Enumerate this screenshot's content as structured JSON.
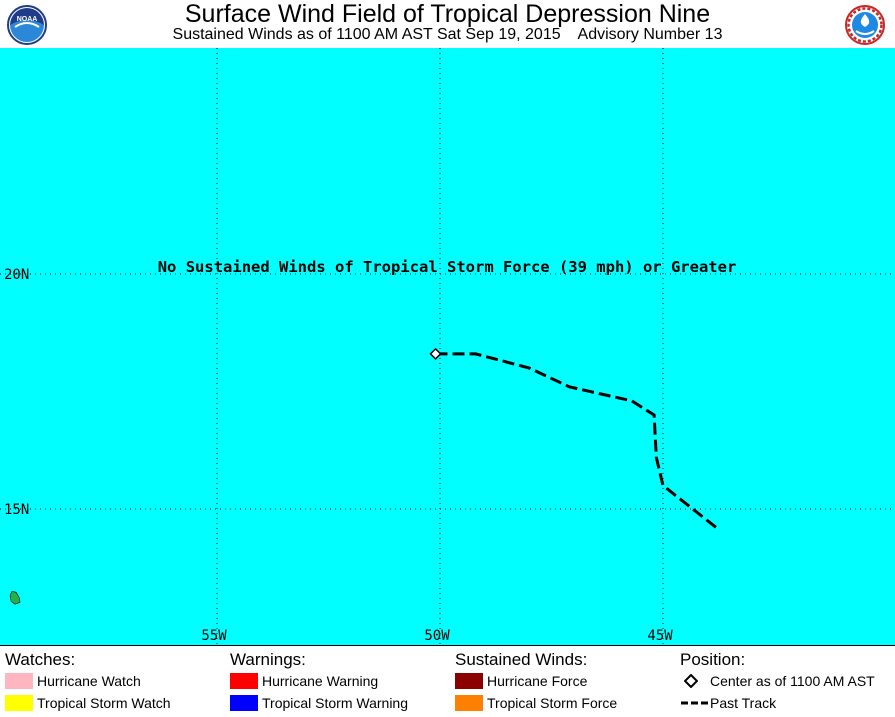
{
  "header": {
    "title": "Surface Wind Field of Tropical Depression Nine",
    "subtitle": "Sustained Winds as of 1100 AM AST Sat Sep 19, 2015    Advisory Number 13",
    "noaa_logo_text": "NOAA",
    "nws_logo_text": "NATIONAL WEATHER SERVICE"
  },
  "map": {
    "ocean_color": "#00FFFF",
    "land_color": "#22B14C",
    "track_color": "#000000",
    "lat_labels": [
      "20N",
      "15N"
    ],
    "lon_labels": [
      "55W",
      "50W",
      "45W"
    ],
    "grid_lats": [
      20,
      15
    ],
    "grid_lons": [
      -55,
      -50,
      -45
    ],
    "no_winds_note": "No Sustained Winds of Tropical Storm Force (39 mph) or Greater",
    "center": {
      "lat": 18.3,
      "lon": -50.1
    },
    "past_track": [
      {
        "lat": 18.3,
        "lon": -50.1
      },
      {
        "lat": 18.3,
        "lon": -49.2
      },
      {
        "lat": 18.0,
        "lon": -48.0
      },
      {
        "lat": 17.6,
        "lon": -47.1
      },
      {
        "lat": 17.45,
        "lon": -46.4
      },
      {
        "lat": 17.3,
        "lon": -45.7
      },
      {
        "lat": 17.0,
        "lon": -45.2
      },
      {
        "lat": 16.1,
        "lon": -45.15
      },
      {
        "lat": 15.9,
        "lon": -45.1
      },
      {
        "lat": 15.5,
        "lon": -45.0
      },
      {
        "lat": 14.6,
        "lon": -43.8
      }
    ],
    "island": {
      "lat": 13.1,
      "lon": -59.55
    }
  },
  "legend": {
    "watches": {
      "title": "Watches:",
      "items": [
        {
          "label": "Hurricane Watch",
          "color": "#FFB6C1"
        },
        {
          "label": "Tropical Storm Watch",
          "color": "#FFFF00"
        }
      ]
    },
    "warnings": {
      "title": "Warnings:",
      "items": [
        {
          "label": "Hurricane Warning",
          "color": "#FF0000"
        },
        {
          "label": "Tropical Storm Warning",
          "color": "#0000FF"
        }
      ]
    },
    "winds": {
      "title": "Sustained Winds:",
      "items": [
        {
          "label": "Hurricane Force",
          "color": "#8B0000"
        },
        {
          "label": "Tropical Storm Force",
          "color": "#FF8000"
        }
      ]
    },
    "position": {
      "title": "Position:",
      "items": [
        {
          "label": "Center as of 1100 AM AST",
          "icon": "diamond-icon"
        },
        {
          "label": "Past Track",
          "icon": "dashed-line-icon"
        }
      ]
    }
  }
}
